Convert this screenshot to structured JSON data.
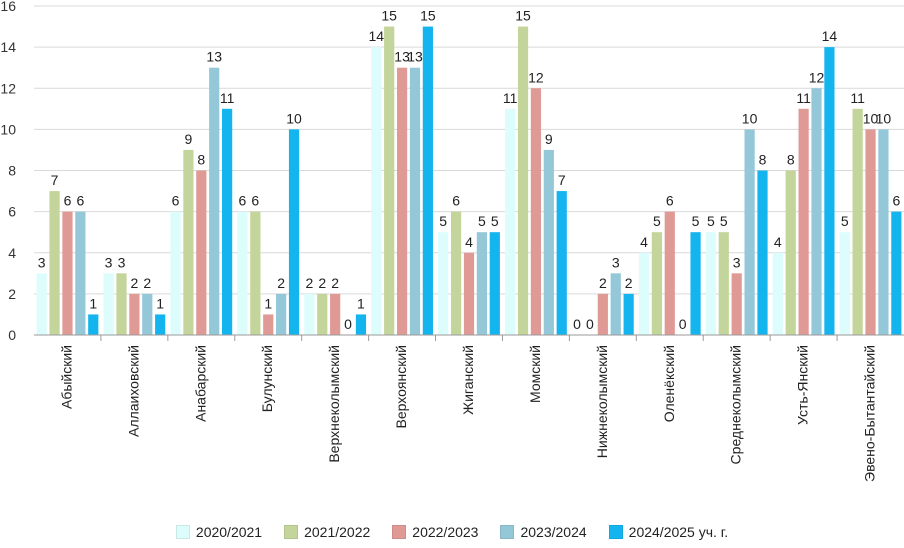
{
  "chart_data": {
    "type": "bar",
    "categories": [
      "Абыйский",
      "Аллаиховский",
      "Анабарский",
      "Булунский",
      "Верхнеколымский",
      "Верхоянский",
      "Жиганский",
      "Момский",
      "Нижнеколымский",
      "Оленёкский",
      "Среднеколымский",
      "Усть-Янский",
      "Эвено-Бытантайский"
    ],
    "series": [
      {
        "name": "2020/2021",
        "color": "#ddfcfc",
        "values": [
          3,
          3,
          6,
          6,
          2,
          14,
          5,
          11,
          0,
          4,
          5,
          4,
          5
        ]
      },
      {
        "name": "2021/2022",
        "color": "#c3d59a",
        "values": [
          7,
          3,
          9,
          6,
          2,
          15,
          6,
          15,
          0,
          5,
          5,
          8,
          11
        ]
      },
      {
        "name": "2022/2023",
        "color": "#e09a96",
        "values": [
          6,
          2,
          8,
          1,
          2,
          13,
          4,
          12,
          2,
          6,
          3,
          11,
          10
        ]
      },
      {
        "name": "2023/2024",
        "color": "#94c8d8",
        "values": [
          6,
          2,
          13,
          2,
          0,
          13,
          5,
          9,
          3,
          0,
          10,
          12,
          10
        ]
      },
      {
        "name": "2024/2025 уч. г.",
        "color": "#14b5ee",
        "values": [
          1,
          1,
          11,
          10,
          1,
          15,
          5,
          7,
          2,
          5,
          8,
          14,
          6
        ]
      }
    ],
    "ylim": [
      0,
      16
    ],
    "yticks": [
      "0",
      "2",
      "4",
      "6",
      "8",
      "10",
      "12",
      "14",
      "16"
    ],
    "grid": true,
    "legend_position": "bottom"
  }
}
